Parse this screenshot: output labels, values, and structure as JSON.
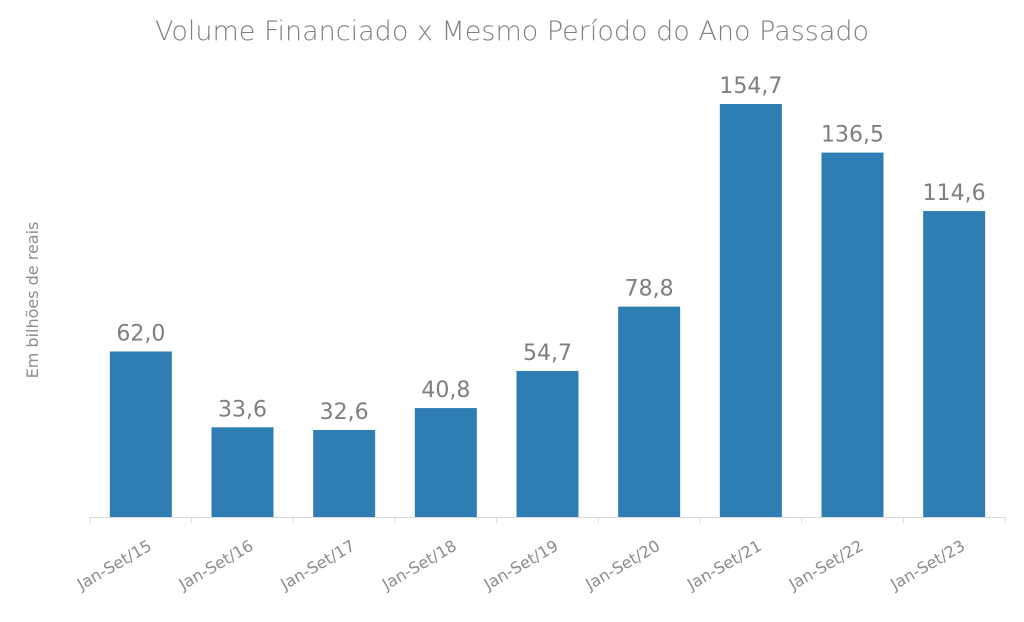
{
  "chart_data": {
    "type": "bar",
    "title": "Volume Financiado x Mesmo Período do Ano Passado",
    "xlabel": "",
    "ylabel": "Em bilhões de reais",
    "categories": [
      "Jan-Set/15",
      "Jan-Set/16",
      "Jan-Set/17",
      "Jan-Set/18",
      "Jan-Set/19",
      "Jan-Set/20",
      "Jan-Set/21",
      "Jan-Set/22",
      "Jan-Set/23"
    ],
    "values": [
      62.0,
      33.6,
      32.6,
      40.8,
      54.7,
      78.8,
      154.7,
      136.5,
      114.6
    ],
    "data_labels": [
      "62,0",
      "33,6",
      "32,6",
      "40,8",
      "54,7",
      "78,8",
      "154,7",
      "136,5",
      "114,6"
    ],
    "ylim": [
      0,
      154.7
    ],
    "grid": false,
    "legend": "none",
    "bar_color": "#2e7db3",
    "axis_color": "#d9d9d9"
  }
}
